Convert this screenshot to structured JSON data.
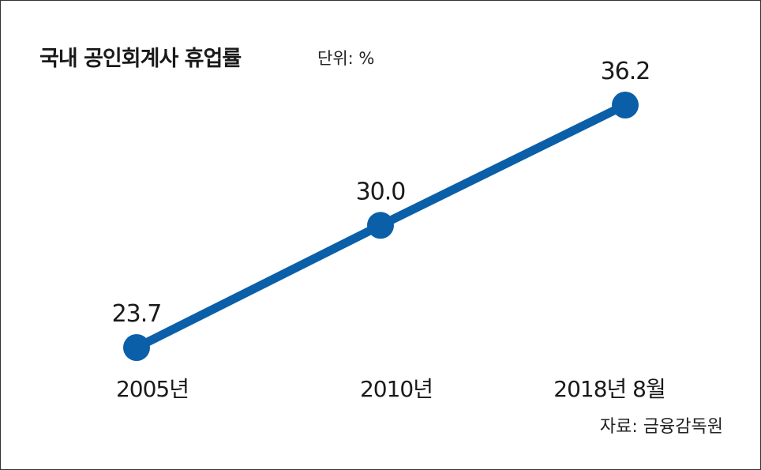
{
  "title": "국내 공인회계사 휴업률",
  "unit": "단위: %",
  "source": "자료: 금융감독원",
  "colors": {
    "line": "#0a5fa8",
    "marker": "#0a5fa8",
    "text": "#1a1a1a"
  },
  "chart_data": {
    "type": "line",
    "categories": [
      "2005년",
      "2010년",
      "2018년 8월"
    ],
    "values": [
      23.7,
      30.0,
      36.2
    ],
    "value_labels": [
      "23.7",
      "30.0",
      "36.2"
    ],
    "title": "국내 공인회계사 휴업률",
    "ylabel": "",
    "xlabel": "",
    "grid": false,
    "legend": "none"
  }
}
